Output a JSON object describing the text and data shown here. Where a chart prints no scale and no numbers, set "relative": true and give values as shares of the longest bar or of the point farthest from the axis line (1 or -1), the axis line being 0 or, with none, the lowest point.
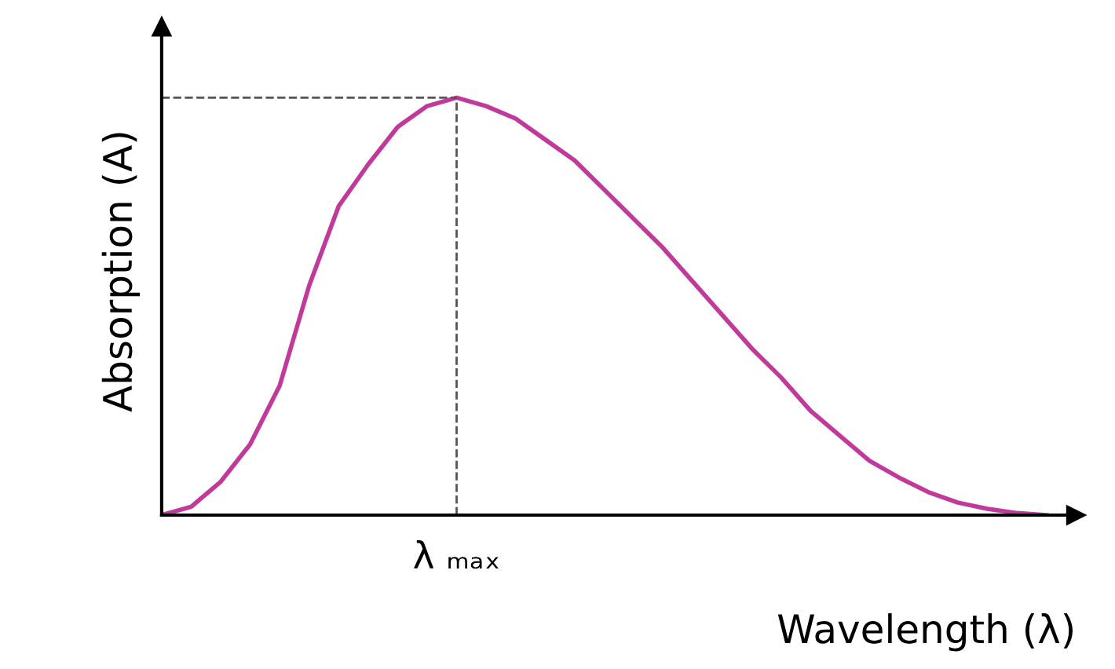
{
  "chart_data": {
    "type": "line",
    "relative": true,
    "xlabel": "Wavelength (λ)",
    "ylabel": "Absorption (A)",
    "categories": [
      null,
      null,
      null,
      null,
      null,
      null,
      null,
      null,
      null,
      null,
      null,
      null,
      null,
      null,
      null,
      null,
      null,
      null,
      null,
      null,
      null,
      null,
      null,
      null,
      null,
      null,
      null,
      null,
      null,
      null,
      null
    ],
    "series": [
      {
        "color": "#c2399c",
        "values": [
          0,
          0.02,
          0.08,
          0.17,
          0.31,
          0.55,
          0.74,
          0.84,
          0.93,
          0.98,
          1,
          0.98,
          0.95,
          0.9,
          0.85,
          0.78,
          0.71,
          0.64,
          0.56,
          0.48,
          0.4,
          0.33,
          0.25,
          0.19,
          0.13,
          0.09,
          0.055,
          0.03,
          0.015,
          0.005,
          0
        ]
      }
    ],
    "annotations": [
      "λ ₘₐₓ"
    ],
    "ref_lines": [
      {
        "axis": "y",
        "value": 1,
        "color": "#555555",
        "line_style": "dashed"
      }
    ],
    "legend": false,
    "marker": "none",
    "line_style": "solid"
  }
}
